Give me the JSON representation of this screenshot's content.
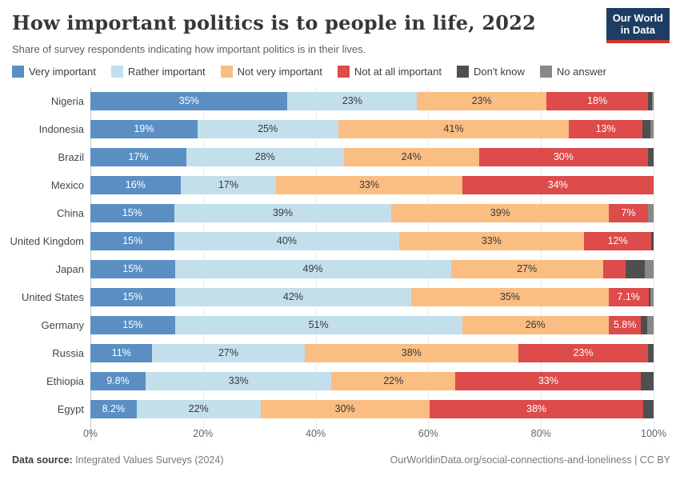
{
  "header": {
    "logo": {
      "line1": "Our World",
      "line2": "in Data",
      "bg_color": "#1d3d63",
      "accent_color": "#d0342c"
    }
  },
  "chart_data": {
    "type": "bar",
    "variant": "horizontal-stacked-percentage",
    "title": "How important politics is to people in life, 2022",
    "subtitle": "Share of survey respondents indicating how important politics is in their lives.",
    "unit": "%",
    "xlim": [
      0,
      100
    ],
    "x_ticks": [
      "0%",
      "20%",
      "40%",
      "60%",
      "80%",
      "100%"
    ],
    "grid": true,
    "legend_position": "top",
    "series_meta": [
      {
        "name": "Very important",
        "color": "#5b8fc4",
        "label_color": "#ffffff"
      },
      {
        "name": "Rather important",
        "color": "#c3dfec",
        "label_color": "#383838"
      },
      {
        "name": "Not very important",
        "color": "#fabd82",
        "label_color": "#383838"
      },
      {
        "name": "Not at all important",
        "color": "#dd4b4b",
        "label_color": "#ffffff"
      },
      {
        "name": "Don't know",
        "color": "#4f4f4f",
        "label_color": "#ffffff"
      },
      {
        "name": "No answer",
        "color": "#888888",
        "label_color": "#ffffff"
      }
    ],
    "rows": [
      {
        "country": "Nigeria",
        "values": [
          35,
          23,
          23,
          18,
          0.7,
          0.3
        ],
        "labels": [
          "35%",
          "23%",
          "23%",
          "18%",
          "",
          ""
        ]
      },
      {
        "country": "Indonesia",
        "values": [
          19,
          25,
          41,
          13,
          1.5,
          0.5
        ],
        "labels": [
          "19%",
          "25%",
          "41%",
          "13%",
          "",
          ""
        ]
      },
      {
        "country": "Brazil",
        "values": [
          17,
          28,
          24,
          30,
          1,
          0
        ],
        "labels": [
          "17%",
          "28%",
          "24%",
          "30%",
          "",
          ""
        ]
      },
      {
        "country": "Mexico",
        "values": [
          16,
          17,
          33,
          34,
          0,
          0
        ],
        "labels": [
          "16%",
          "17%",
          "33%",
          "34%",
          "",
          ""
        ]
      },
      {
        "country": "China",
        "values": [
          15,
          39,
          39,
          7,
          0,
          1
        ],
        "labels": [
          "15%",
          "39%",
          "39%",
          "7%",
          "",
          ""
        ]
      },
      {
        "country": "United Kingdom",
        "values": [
          15,
          40,
          33,
          12,
          0.4,
          0
        ],
        "labels": [
          "15%",
          "40%",
          "33%",
          "12%",
          "",
          ""
        ]
      },
      {
        "country": "Japan",
        "values": [
          15,
          49,
          27,
          4.1,
          3.4,
          1.5
        ],
        "labels": [
          "15%",
          "49%",
          "27%",
          "",
          "",
          ""
        ]
      },
      {
        "country": "United States",
        "values": [
          15,
          42,
          35,
          7.1,
          0.4,
          0.5
        ],
        "labels": [
          "15%",
          "42%",
          "35%",
          "7.1%",
          "",
          ""
        ]
      },
      {
        "country": "Germany",
        "values": [
          15,
          51,
          26,
          5.8,
          1.1,
          1.1
        ],
        "labels": [
          "15%",
          "51%",
          "26%",
          "5.8%",
          "",
          ""
        ]
      },
      {
        "country": "Russia",
        "values": [
          11,
          27,
          38,
          23,
          1,
          0
        ],
        "labels": [
          "11%",
          "27%",
          "38%",
          "23%",
          "",
          ""
        ]
      },
      {
        "country": "Ethiopia",
        "values": [
          9.8,
          33,
          22,
          33,
          2.2,
          0
        ],
        "labels": [
          "9.8%",
          "33%",
          "22%",
          "33%",
          "",
          ""
        ]
      },
      {
        "country": "Egypt",
        "values": [
          8.2,
          22,
          30,
          38,
          1.8,
          0
        ],
        "labels": [
          "8.2%",
          "22%",
          "30%",
          "38%",
          "",
          ""
        ]
      }
    ]
  },
  "footer": {
    "source_label": "Data source:",
    "source_value": " Integrated Values Surveys (2024)",
    "link": "OurWorldinData.org/social-connections-and-loneliness | CC BY"
  }
}
